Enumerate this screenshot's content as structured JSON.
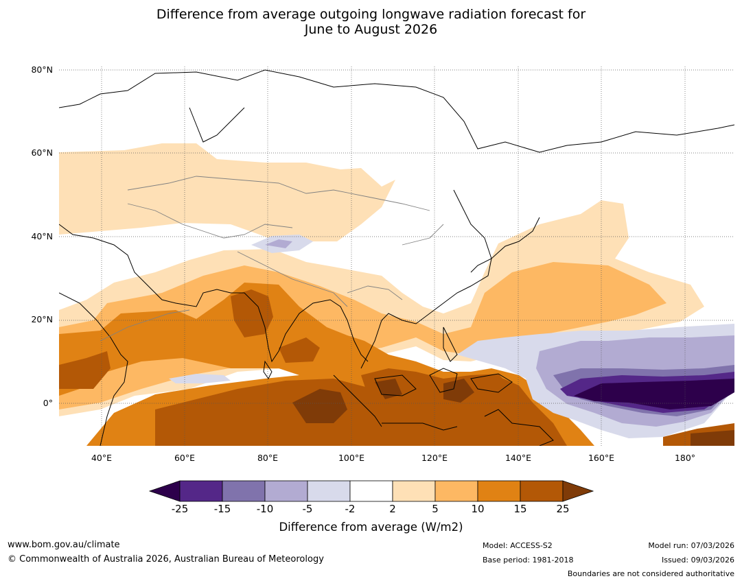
{
  "title_line1": "Difference from average outgoing longwave radiation forecast for",
  "title_line2": "June to August 2026",
  "map": {
    "lat_labels": [
      "80°N",
      "60°N",
      "40°N",
      "20°N",
      "0°"
    ],
    "lon_labels": [
      "40°E",
      "60°E",
      "80°E",
      "100°E",
      "120°E",
      "140°E",
      "160°E",
      "180°"
    ]
  },
  "colorbar": {
    "title": "Difference from average (W/m2)",
    "ticks": [
      "-25",
      "-15",
      "-10",
      "-5",
      "-2",
      "2",
      "5",
      "10",
      "15",
      "25"
    ],
    "colors": [
      "#2d004b",
      "#542788",
      "#8073ac",
      "#b2abd2",
      "#d8daeb",
      "#ffffff",
      "#fee0b6",
      "#fdb863",
      "#e08214",
      "#b35806",
      "#7f3b08"
    ]
  },
  "footer": {
    "website": "www.bom.gov.au/climate",
    "copyright": "© Commonwealth of Australia 2026, Australian Bureau of Meteorology",
    "model": "Model: ACCESS-S2",
    "base_period": "Base period: 1981-2018",
    "model_run": "Model run: 07/03/2026",
    "issued": "Issued: 09/03/2026",
    "boundaries": "Boundaries are not considered authoritative"
  }
}
